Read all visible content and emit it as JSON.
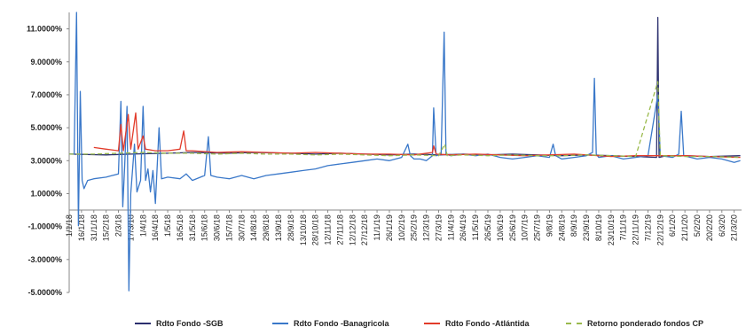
{
  "chart_data": {
    "type": "line",
    "title": "",
    "xlabel": "",
    "ylabel": "",
    "ylim": [
      -0.05,
      0.12
    ],
    "yticks": [
      "11.0000%",
      "9.0000%",
      "7.0000%",
      "5.0000%",
      "3.0000%",
      "1.0000%",
      "-1.0000%",
      "-3.0000%",
      "-5.0000%"
    ],
    "ytick_values": [
      0.11,
      0.09,
      0.07,
      0.05,
      0.03,
      0.01,
      -0.01,
      -0.03,
      -0.05
    ],
    "x_categories": [
      "1/1/18",
      "16/1/18",
      "31/1/18",
      "15/2/18",
      "2/3/18",
      "17/3/18",
      "1/4/18",
      "16/4/18",
      "1/5/18",
      "16/5/18",
      "31/5/18",
      "15/6/18",
      "30/6/18",
      "15/7/18",
      "30/7/18",
      "14/8/18",
      "29/8/18",
      "13/9/18",
      "28/9/18",
      "13/10/18",
      "28/10/18",
      "12/11/18",
      "27/11/18",
      "12/12/18",
      "27/12/18",
      "11/1/19",
      "26/1/19",
      "10/2/19",
      "25/2/19",
      "12/3/19",
      "27/3/19",
      "11/4/19",
      "26/4/19",
      "11/5/19",
      "26/5/19",
      "10/6/19",
      "25/6/19",
      "10/7/19",
      "25/7/19",
      "9/8/19",
      "24/8/19",
      "8/9/19",
      "23/9/19",
      "8/10/19",
      "23/10/19",
      "7/11/19",
      "22/11/19",
      "7/12/19",
      "22/12/19",
      "6/1/20",
      "21/1/20",
      "5/2/20",
      "20/2/20",
      "6/3/20",
      "21/3/20"
    ],
    "grid": false,
    "legend_position": "bottom",
    "series": [
      {
        "name": "Rdto Fondo -SGB",
        "color": "#2b2f6e",
        "dashed": false,
        "points": [
          [
            0,
            0.034
          ],
          [
            3,
            0.0335
          ],
          [
            5,
            0.034
          ],
          [
            8,
            0.0345
          ],
          [
            10,
            0.035
          ],
          [
            13,
            0.0345
          ],
          [
            15,
            0.035
          ],
          [
            18,
            0.0345
          ],
          [
            20,
            0.034
          ],
          [
            22,
            0.0345
          ],
          [
            24,
            0.034
          ],
          [
            26,
            0.0335
          ],
          [
            28,
            0.034
          ],
          [
            30,
            0.0335
          ],
          [
            32,
            0.034
          ],
          [
            34,
            0.0335
          ],
          [
            36,
            0.034
          ],
          [
            38,
            0.0335
          ],
          [
            40,
            0.033
          ],
          [
            42,
            0.0335
          ],
          [
            44,
            0.033
          ],
          [
            46,
            0.0325
          ],
          [
            47.7,
            0.032
          ],
          [
            47.8,
            0.117
          ],
          [
            47.9,
            0.032
          ],
          [
            48.5,
            0.033
          ],
          [
            50,
            0.033
          ],
          [
            52,
            0.0325
          ],
          [
            54.5,
            0.033
          ]
        ]
      },
      {
        "name": "Rdto Fondo -Banagricola",
        "color": "#3a78c9",
        "dashed": false,
        "points": [
          [
            0,
            0.034
          ],
          [
            0.4,
            0.034
          ],
          [
            0.6,
            0.12
          ],
          [
            0.75,
            -0.0095
          ],
          [
            0.9,
            0.072
          ],
          [
            1.05,
            0.018
          ],
          [
            1.2,
            0.013
          ],
          [
            1.5,
            0.018
          ],
          [
            2,
            0.019
          ],
          [
            3,
            0.02
          ],
          [
            3.5,
            0.021
          ],
          [
            4,
            0.022
          ],
          [
            4.2,
            0.066
          ],
          [
            4.35,
            0.002
          ],
          [
            4.5,
            0.026
          ],
          [
            4.7,
            0.063
          ],
          [
            4.85,
            -0.049
          ],
          [
            5,
            0.01
          ],
          [
            5.3,
            0.04
          ],
          [
            5.5,
            0.011
          ],
          [
            5.8,
            0.018
          ],
          [
            6,
            0.063
          ],
          [
            6.2,
            0.018
          ],
          [
            6.4,
            0.025
          ],
          [
            6.6,
            0.011
          ],
          [
            6.8,
            0.024
          ],
          [
            7,
            0.004
          ],
          [
            7.3,
            0.05
          ],
          [
            7.5,
            0.019
          ],
          [
            8,
            0.02
          ],
          [
            9,
            0.019
          ],
          [
            9.5,
            0.022
          ],
          [
            10,
            0.018
          ],
          [
            11,
            0.021
          ],
          [
            11.3,
            0.0445
          ],
          [
            11.5,
            0.021
          ],
          [
            12,
            0.02
          ],
          [
            13,
            0.019
          ],
          [
            14,
            0.021
          ],
          [
            15,
            0.019
          ],
          [
            16,
            0.021
          ],
          [
            17,
            0.022
          ],
          [
            18,
            0.023
          ],
          [
            19,
            0.024
          ],
          [
            20,
            0.025
          ],
          [
            21,
            0.027
          ],
          [
            22,
            0.028
          ],
          [
            23,
            0.029
          ],
          [
            24,
            0.03
          ],
          [
            25,
            0.031
          ],
          [
            26,
            0.03
          ],
          [
            27,
            0.032
          ],
          [
            27.5,
            0.04
          ],
          [
            27.7,
            0.033
          ],
          [
            28,
            0.031
          ],
          [
            28.5,
            0.031
          ],
          [
            29,
            0.03
          ],
          [
            29.5,
            0.033
          ],
          [
            29.6,
            0.062
          ],
          [
            29.8,
            0.033
          ],
          [
            30.2,
            0.034
          ],
          [
            30.45,
            0.108
          ],
          [
            30.6,
            0.034
          ],
          [
            31,
            0.033
          ],
          [
            32,
            0.034
          ],
          [
            33,
            0.033
          ],
          [
            34,
            0.034
          ],
          [
            35,
            0.032
          ],
          [
            36,
            0.031
          ],
          [
            37,
            0.032
          ],
          [
            38,
            0.033
          ],
          [
            39,
            0.032
          ],
          [
            39.3,
            0.04
          ],
          [
            39.5,
            0.033
          ],
          [
            40,
            0.031
          ],
          [
            41,
            0.032
          ],
          [
            42,
            0.033
          ],
          [
            42.5,
            0.035
          ],
          [
            42.65,
            0.08
          ],
          [
            42.8,
            0.034
          ],
          [
            43,
            0.032
          ],
          [
            44,
            0.033
          ],
          [
            45,
            0.031
          ],
          [
            46,
            0.032
          ],
          [
            47,
            0.033
          ],
          [
            47.8,
            0.07
          ],
          [
            48,
            0.033
          ],
          [
            49,
            0.032
          ],
          [
            49.5,
            0.034
          ],
          [
            49.7,
            0.06
          ],
          [
            49.9,
            0.033
          ],
          [
            51,
            0.031
          ],
          [
            52,
            0.032
          ],
          [
            53,
            0.031
          ],
          [
            54,
            0.029
          ],
          [
            54.5,
            0.03
          ]
        ]
      },
      {
        "name": "Rdto Fondo -Atlántida",
        "color": "#e23b2a",
        "dashed": false,
        "points": [
          [
            2,
            0.038
          ],
          [
            3,
            0.037
          ],
          [
            4,
            0.036
          ],
          [
            4.2,
            0.052
          ],
          [
            4.4,
            0.036
          ],
          [
            4.8,
            0.058
          ],
          [
            5,
            0.037
          ],
          [
            5.4,
            0.059
          ],
          [
            5.6,
            0.037
          ],
          [
            6,
            0.045
          ],
          [
            6.2,
            0.037
          ],
          [
            7,
            0.036
          ],
          [
            8,
            0.036
          ],
          [
            9,
            0.037
          ],
          [
            9.3,
            0.048
          ],
          [
            9.5,
            0.036
          ],
          [
            10,
            0.036
          ],
          [
            12,
            0.035
          ],
          [
            14,
            0.0355
          ],
          [
            16,
            0.035
          ],
          [
            18,
            0.0345
          ],
          [
            20,
            0.035
          ],
          [
            22,
            0.0345
          ],
          [
            24,
            0.034
          ],
          [
            26,
            0.034
          ],
          [
            28,
            0.0335
          ],
          [
            29.5,
            0.035
          ],
          [
            29.6,
            0.039
          ],
          [
            29.8,
            0.034
          ],
          [
            31,
            0.0335
          ],
          [
            33,
            0.034
          ],
          [
            35,
            0.0335
          ],
          [
            37,
            0.033
          ],
          [
            39,
            0.0335
          ],
          [
            41,
            0.034
          ],
          [
            43,
            0.033
          ],
          [
            44,
            0.0325
          ],
          [
            46,
            0.033
          ],
          [
            48,
            0.033
          ],
          [
            50,
            0.033
          ],
          [
            52,
            0.0325
          ],
          [
            54.5,
            0.032
          ]
        ]
      },
      {
        "name": "Retorno ponderado fondos CP",
        "color": "#9aba4c",
        "dashed": true,
        "points": [
          [
            0,
            0.034
          ],
          [
            2,
            0.034
          ],
          [
            4,
            0.0345
          ],
          [
            6,
            0.035
          ],
          [
            8,
            0.0345
          ],
          [
            10,
            0.0345
          ],
          [
            12,
            0.034
          ],
          [
            14,
            0.0345
          ],
          [
            16,
            0.034
          ],
          [
            18,
            0.034
          ],
          [
            20,
            0.0335
          ],
          [
            22,
            0.034
          ],
          [
            24,
            0.0335
          ],
          [
            26,
            0.033
          ],
          [
            28,
            0.0335
          ],
          [
            30,
            0.033
          ],
          [
            30.5,
            0.04
          ],
          [
            30.7,
            0.033
          ],
          [
            32,
            0.0335
          ],
          [
            34,
            0.033
          ],
          [
            36,
            0.0335
          ],
          [
            38,
            0.033
          ],
          [
            40,
            0.033
          ],
          [
            42,
            0.0335
          ],
          [
            44,
            0.033
          ],
          [
            46,
            0.0325
          ],
          [
            47.8,
            0.078
          ],
          [
            48,
            0.033
          ],
          [
            50,
            0.0325
          ],
          [
            52,
            0.0325
          ],
          [
            54.5,
            0.032
          ]
        ]
      }
    ]
  }
}
